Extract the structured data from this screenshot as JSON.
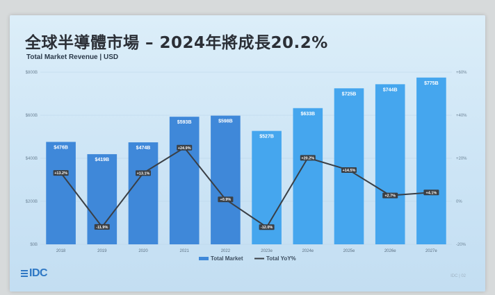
{
  "slide": {
    "title": "全球半導體市場 – 2024年將成長20.2%",
    "subtitle": "Total Market Revenue | USD",
    "logo": "IDC",
    "footer": "IDC | 02"
  },
  "colors": {
    "bar_actual": "#3f88d9",
    "bar_forecast": "#45a6ee",
    "line": "#3a3f45",
    "label_bg": "#3b3f44"
  },
  "chart_data": {
    "type": "bar",
    "title": "",
    "categories": [
      "2018",
      "2019",
      "2020",
      "2021",
      "2022",
      "2023e",
      "2024e",
      "2025e",
      "2026e",
      "2027e"
    ],
    "series": [
      {
        "name": "Total Market",
        "type": "bar",
        "values": [
          476,
          419,
          474,
          593,
          598,
          527,
          633,
          725,
          744,
          775
        ],
        "labels": [
          "$476B",
          "$419B",
          "$474B",
          "$593B",
          "$598B",
          "$527B",
          "$633B",
          "$725B",
          "$744B",
          "$775B"
        ]
      },
      {
        "name": "Total YoY%",
        "type": "line",
        "axis": "right",
        "values": [
          13.2,
          -11.9,
          13.1,
          24.9,
          0.9,
          -12.0,
          20.2,
          14.5,
          2.7,
          4.1
        ],
        "labels": [
          "+13.2%",
          "-11.9%",
          "+13.1%",
          "+24.9%",
          "+0.9%",
          "-12.0%",
          "+20.2%",
          "+14.5%",
          "+2.7%",
          "+4.1%"
        ]
      }
    ],
    "forecast_from_index": 5,
    "y_left": {
      "range": [
        0,
        800
      ],
      "ticks": [
        "$0B",
        "$200B",
        "$400B",
        "$600B",
        "$800B"
      ],
      "tick_values": [
        0,
        200,
        400,
        600,
        800
      ]
    },
    "y_right": {
      "range": [
        -20,
        60
      ],
      "ticks": [
        "-20%",
        "0%",
        "+20%",
        "+40%",
        "+60%"
      ],
      "tick_values": [
        -20,
        0,
        20,
        40,
        60
      ]
    },
    "legend": {
      "position": "bottom",
      "items": [
        "Total Market",
        "Total YoY%"
      ]
    },
    "grid": true
  }
}
